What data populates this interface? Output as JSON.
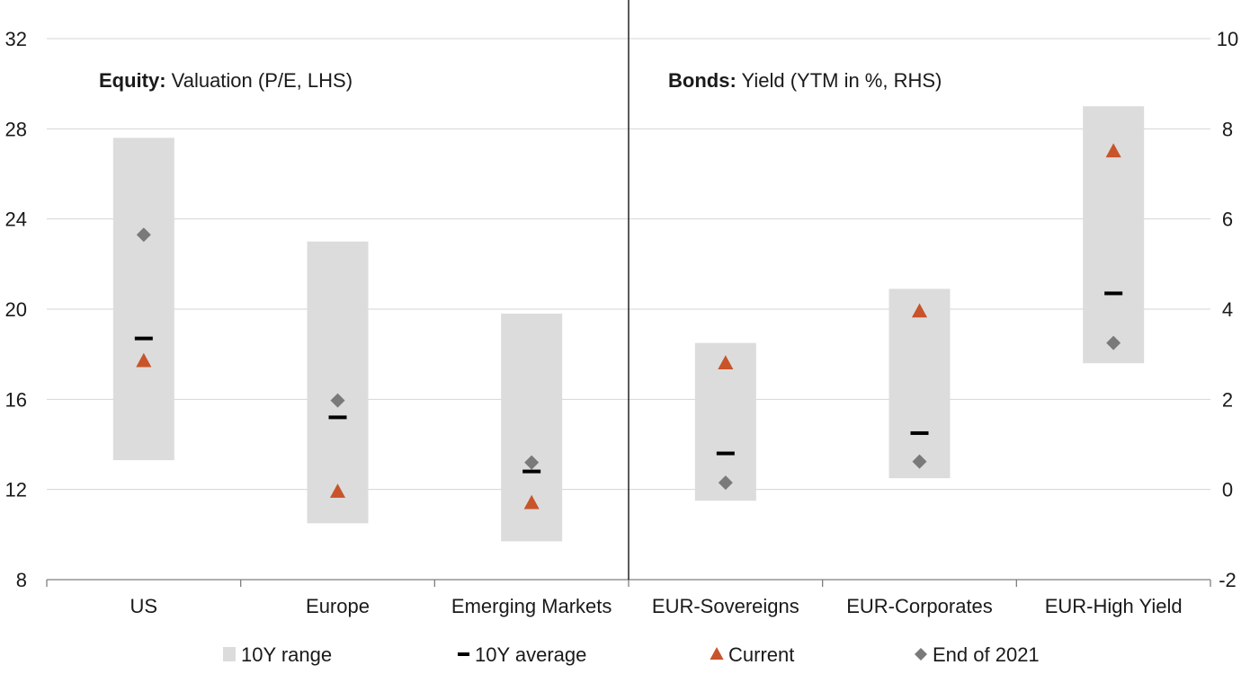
{
  "chart_data": {
    "type": "range-dot",
    "categories": [
      "US",
      "Europe",
      "Emerging Markets",
      "EUR-Sovereigns",
      "EUR-Corporates",
      "EUR-High Yield"
    ],
    "panels": [
      {
        "bold": "Equity:",
        "rest": " Valuation (P/E, LHS)",
        "axis": "left",
        "categories": [
          0,
          1,
          2
        ]
      },
      {
        "bold": "Bonds:",
        "rest": " Yield (YTM in %, RHS)",
        "axis": "right",
        "categories": [
          3,
          4,
          5
        ]
      }
    ],
    "left_axis": {
      "min": 8,
      "max": 32,
      "ticks": [
        8,
        12,
        16,
        20,
        24,
        28,
        32
      ]
    },
    "right_axis": {
      "min": -2,
      "max": 10,
      "ticks": [
        -2,
        0,
        2,
        4,
        6,
        8,
        10
      ]
    },
    "grid": true,
    "series": [
      {
        "name": "10Y range",
        "kind": "range",
        "color": "#dcdcdc",
        "values": [
          [
            13.3,
            27.6
          ],
          [
            10.5,
            23.0
          ],
          [
            9.7,
            19.8
          ],
          [
            -0.25,
            3.25
          ],
          [
            0.25,
            4.45
          ],
          [
            2.8,
            8.5
          ]
        ]
      },
      {
        "name": "10Y average",
        "kind": "dash",
        "color": "#000000",
        "values": [
          18.7,
          15.2,
          12.8,
          0.8,
          1.25,
          4.35
        ]
      },
      {
        "name": "Current",
        "kind": "triangle",
        "color": "#c8542a",
        "values": [
          17.7,
          11.9,
          11.4,
          2.8,
          3.95,
          7.5
        ]
      },
      {
        "name": "End of 2021",
        "kind": "diamond",
        "color": "#7a7a7a",
        "values": [
          23.3,
          15.95,
          13.2,
          0.15,
          0.62,
          3.25
        ]
      }
    ],
    "legend_position": "bottom"
  }
}
